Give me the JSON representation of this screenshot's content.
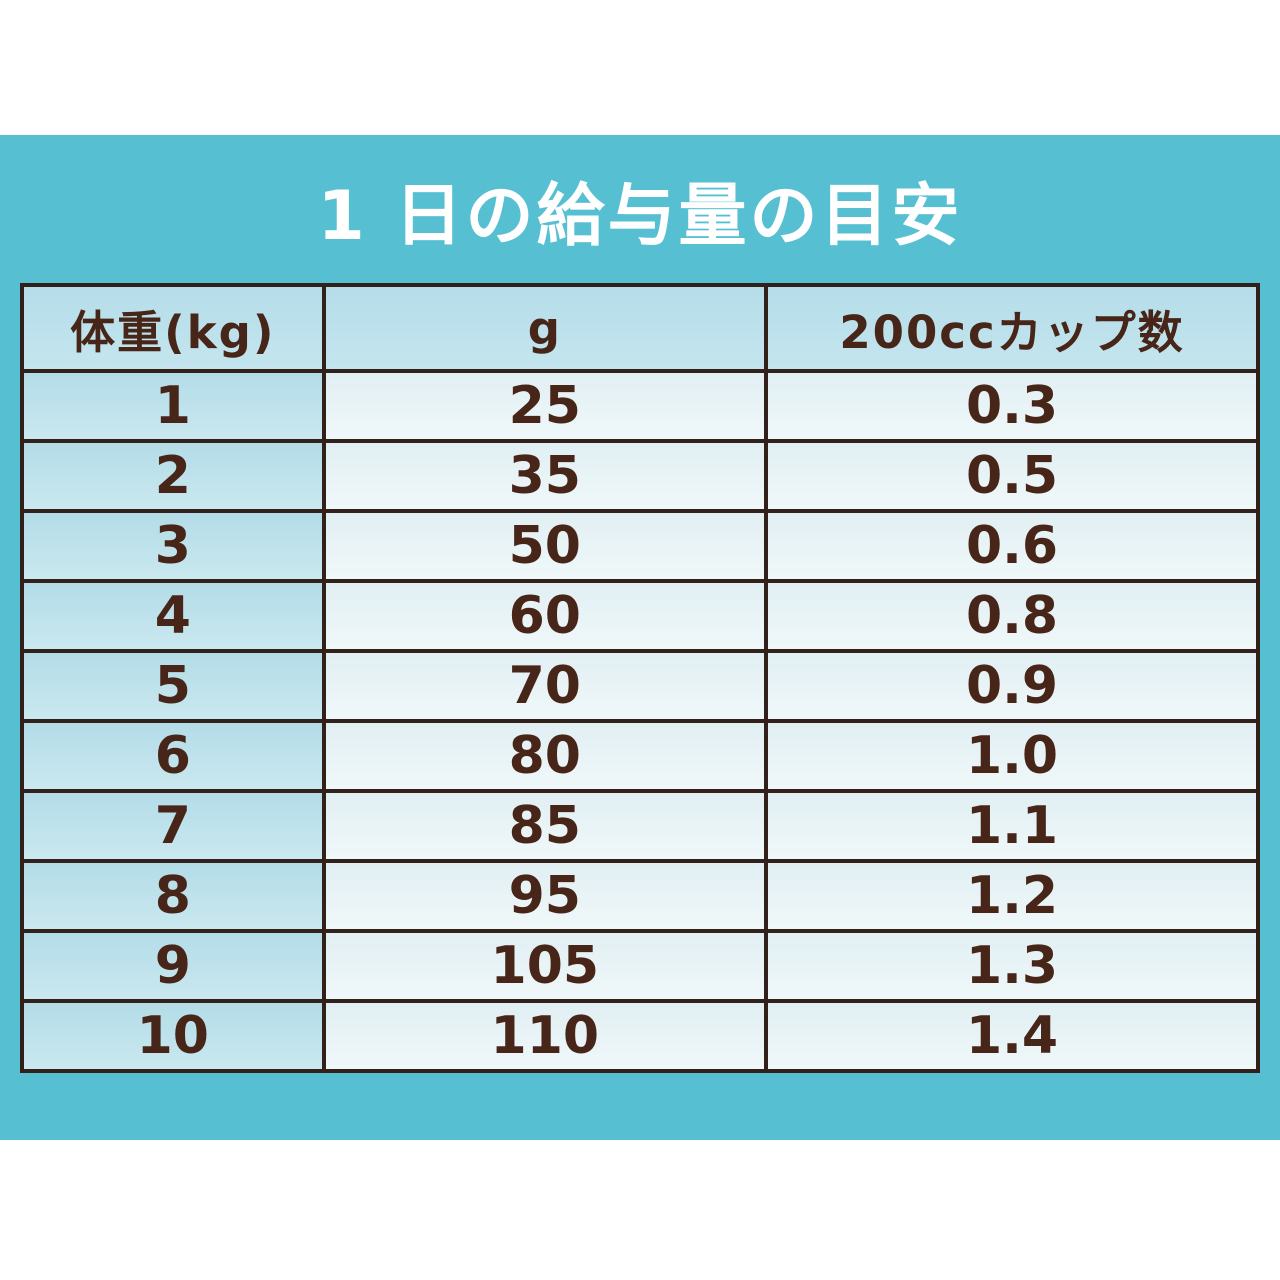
{
  "title": "1 日の給与量の目安",
  "colors": {
    "panel_background": "#56c0d2",
    "page_background": "#ffffff",
    "title_text": "#ffffff",
    "table_border": "#32211a",
    "table_text": "#472619",
    "header_cell_background": "#bde2ec",
    "weight_column_background": "#bfe0ea",
    "value_cell_background": "#e9f4f6"
  },
  "table": {
    "headers": [
      "体重(kg)",
      "g",
      "200ccカップ数"
    ],
    "rows": [
      [
        "1",
        "25",
        "0.3"
      ],
      [
        "2",
        "35",
        "0.5"
      ],
      [
        "3",
        "50",
        "0.6"
      ],
      [
        "4",
        "60",
        "0.8"
      ],
      [
        "5",
        "70",
        "0.9"
      ],
      [
        "6",
        "80",
        "1.0"
      ],
      [
        "7",
        "85",
        "1.1"
      ],
      [
        "8",
        "95",
        "1.2"
      ],
      [
        "9",
        "105",
        "1.3"
      ],
      [
        "10",
        "110",
        "1.4"
      ]
    ]
  },
  "chart_data": {
    "type": "table",
    "title": "1 日の給与量の目安",
    "columns": [
      "体重(kg)",
      "g",
      "200ccカップ数"
    ],
    "rows": [
      [
        1,
        25,
        0.3
      ],
      [
        2,
        35,
        0.5
      ],
      [
        3,
        50,
        0.6
      ],
      [
        4,
        60,
        0.8
      ],
      [
        5,
        70,
        0.9
      ],
      [
        6,
        80,
        1.0
      ],
      [
        7,
        85,
        1.1
      ],
      [
        8,
        95,
        1.2
      ],
      [
        9,
        105,
        1.3
      ],
      [
        10,
        110,
        1.4
      ]
    ]
  }
}
